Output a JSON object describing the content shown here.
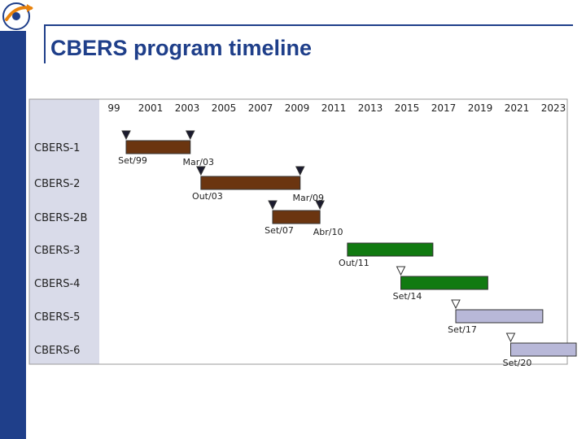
{
  "slide": {
    "title": "CBERS program timeline",
    "accent_color": "#1f3f8a",
    "logo_icon": "inpe-logo"
  },
  "chart_data": {
    "type": "gantt",
    "title": "CBERS program timeline",
    "xlabel": "",
    "ylabel": "",
    "x_ticks": [
      "99",
      "2001",
      "2003",
      "2005",
      "2007",
      "2009",
      "2011",
      "2013",
      "2015",
      "2017",
      "2019",
      "2021",
      "2023"
    ],
    "x_tick_years": [
      1999,
      2001,
      2003,
      2005,
      2007,
      2009,
      2011,
      2013,
      2015,
      2017,
      2019,
      2021,
      2023
    ],
    "xlim": [
      1998,
      2024
    ],
    "grid": false,
    "legend": "none",
    "categories": [
      "CBERS-1",
      "CBERS-2",
      "CBERS-2B",
      "CBERS-3",
      "CBERS-4",
      "CBERS-5",
      "CBERS-6"
    ],
    "series": [
      {
        "label": "CBERS-1",
        "start": "1999-09",
        "end": "2003-03",
        "start_label": "Set/99",
        "end_label": "Mar/03",
        "color": "#6b3510",
        "marker_color": "#1a1a2e"
      },
      {
        "label": "CBERS-2",
        "start": "2003-10",
        "end": "2009-03",
        "start_label": "Out/03",
        "end_label": "Mar/09",
        "color": "#6b3510",
        "marker_color": "#1a1a2e"
      },
      {
        "label": "CBERS-2B",
        "start": "2007-09",
        "end": "2010-04",
        "start_label": "Set/07",
        "end_label": "Abr/10",
        "color": "#6b3510",
        "marker_color": "#1a1a2e"
      },
      {
        "label": "CBERS-3",
        "start": "2011-10",
        "end": "2016-06",
        "start_label": "Out/11",
        "end_label": "",
        "color": "#117a11",
        "marker_color": ""
      },
      {
        "label": "CBERS-4",
        "start": "2014-09",
        "end": "2019-06",
        "start_label": "Set/14",
        "end_label": "",
        "color": "#117a11",
        "marker_color": "#ffffff"
      },
      {
        "label": "CBERS-5",
        "start": "2017-09",
        "end": "2022-06",
        "start_label": "Set/17",
        "end_label": "",
        "color": "#b8b8d8",
        "marker_color": "#ffffff"
      },
      {
        "label": "CBERS-6",
        "start": "2020-09",
        "end": "2025-06",
        "start_label": "Set/20",
        "end_label": "",
        "color": "#b8b8d8",
        "marker_color": "#ffffff"
      }
    ]
  }
}
